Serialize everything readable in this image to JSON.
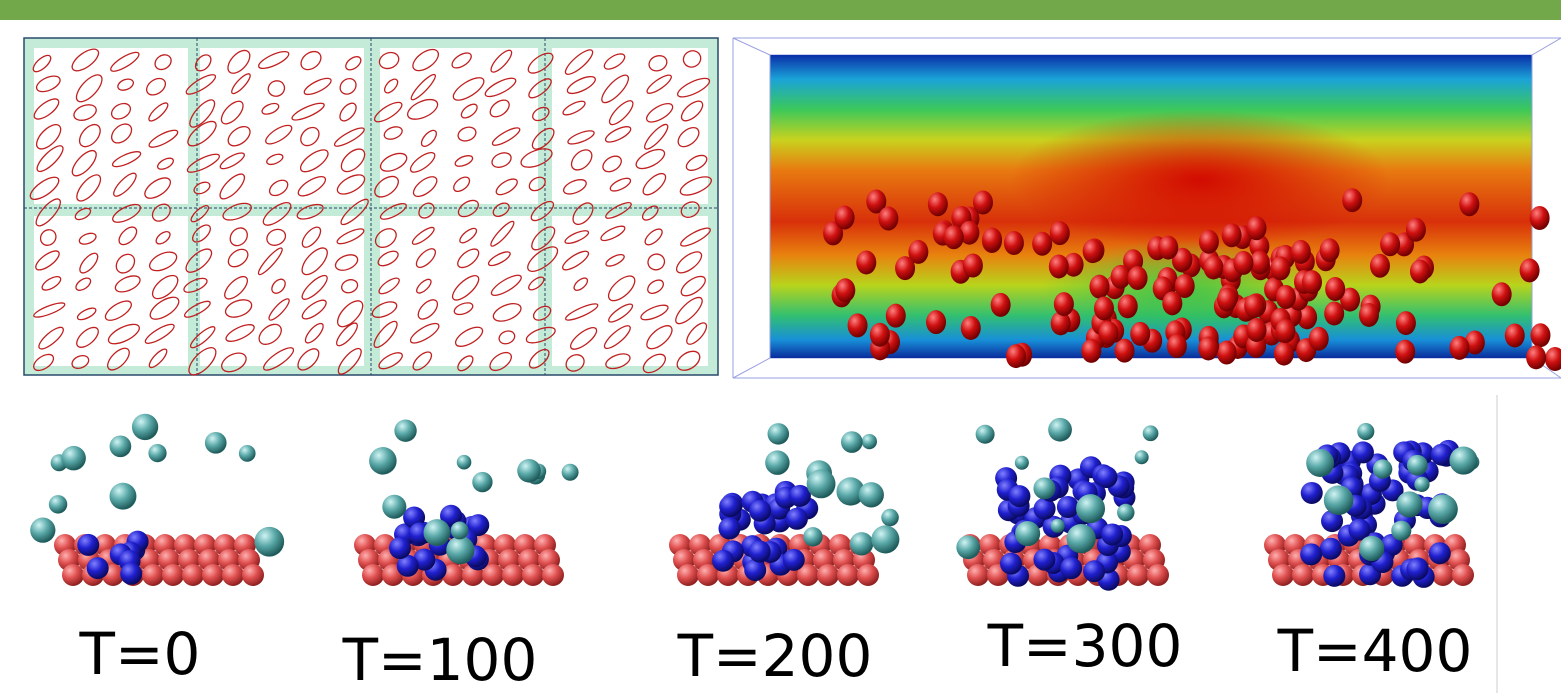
{
  "panels": [
    {
      "label": "T=0"
    },
    {
      "label": "T=100"
    },
    {
      "label": "T=200"
    },
    {
      "label": "T=300"
    },
    {
      "label": "T=400"
    }
  ]
}
